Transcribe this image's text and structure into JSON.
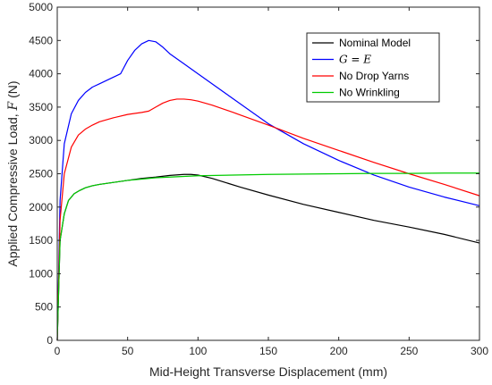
{
  "chart_data": {
    "type": "line",
    "xlabel": "Mid-Height Transverse Displacement (mm)",
    "ylabel": "Applied Compressive Load,",
    "ylabel_symbol": "F",
    "ylabel_unit": "(N)",
    "xlim": [
      0,
      300
    ],
    "ylim": [
      0,
      5000
    ],
    "xticks": [
      0,
      50,
      100,
      150,
      200,
      250,
      300
    ],
    "yticks": [
      0,
      500,
      1000,
      1500,
      2000,
      2500,
      3000,
      3500,
      4000,
      4500,
      5000
    ],
    "grid": false,
    "legend_position": "top-right",
    "series": [
      {
        "name": "Nominal Model",
        "color": "#000000",
        "x": [
          0,
          2,
          5,
          8,
          12,
          16,
          20,
          25,
          30,
          40,
          50,
          60,
          70,
          80,
          90,
          95,
          100,
          110,
          130,
          150,
          175,
          200,
          225,
          250,
          275,
          300
        ],
        "y": [
          0,
          1500,
          1900,
          2100,
          2200,
          2250,
          2290,
          2320,
          2340,
          2370,
          2400,
          2430,
          2450,
          2475,
          2490,
          2490,
          2480,
          2430,
          2300,
          2180,
          2040,
          1920,
          1800,
          1700,
          1590,
          1460
        ]
      },
      {
        "name": "G = E",
        "color": "#0000ff",
        "x": [
          0,
          2,
          5,
          10,
          15,
          20,
          25,
          30,
          35,
          40,
          45,
          50,
          55,
          60,
          65,
          70,
          75,
          80,
          90,
          100,
          120,
          150,
          175,
          200,
          225,
          250,
          275,
          300
        ],
        "y": [
          0,
          2100,
          2950,
          3400,
          3600,
          3720,
          3800,
          3850,
          3900,
          3950,
          4000,
          4200,
          4350,
          4450,
          4500,
          4480,
          4400,
          4300,
          4150,
          4000,
          3700,
          3250,
          2950,
          2700,
          2480,
          2300,
          2150,
          2020
        ]
      },
      {
        "name": "No Drop Yarns",
        "color": "#ff0000",
        "x": [
          0,
          2,
          5,
          10,
          15,
          20,
          25,
          30,
          40,
          50,
          60,
          65,
          70,
          75,
          80,
          85,
          90,
          95,
          100,
          110,
          125,
          150,
          175,
          200,
          225,
          250,
          275,
          300
        ],
        "y": [
          0,
          1800,
          2500,
          2900,
          3080,
          3170,
          3230,
          3280,
          3340,
          3390,
          3420,
          3440,
          3500,
          3560,
          3600,
          3620,
          3620,
          3610,
          3590,
          3530,
          3420,
          3230,
          3030,
          2850,
          2670,
          2500,
          2340,
          2170
        ]
      },
      {
        "name": "No Wrinkling",
        "color": "#00cc00",
        "x": [
          0,
          2,
          5,
          8,
          12,
          16,
          20,
          25,
          30,
          40,
          50,
          60,
          70,
          80,
          90,
          100,
          125,
          150,
          175,
          200,
          225,
          250,
          275,
          300
        ],
        "y": [
          0,
          1500,
          1900,
          2100,
          2200,
          2250,
          2290,
          2320,
          2340,
          2370,
          2400,
          2420,
          2440,
          2450,
          2460,
          2470,
          2480,
          2490,
          2495,
          2500,
          2505,
          2505,
          2510,
          2510
        ]
      }
    ]
  }
}
